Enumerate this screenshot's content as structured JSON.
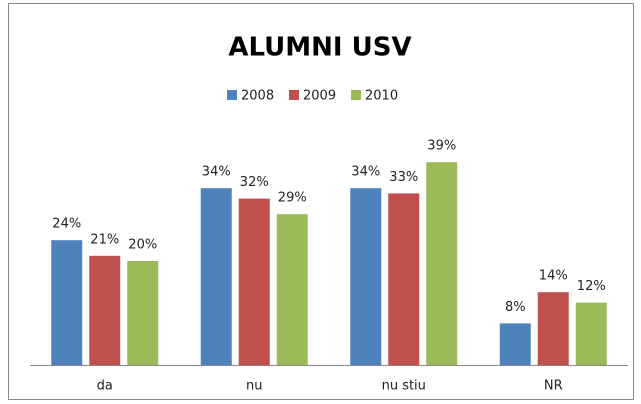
{
  "chart_data": {
    "type": "bar",
    "title": "ALUMNI USV",
    "categories": [
      "da",
      "nu",
      "nu stiu",
      "NR"
    ],
    "series": [
      {
        "name": "2008",
        "color": "#4f81bd",
        "values": [
          24,
          34,
          34,
          8
        ],
        "value_labels": [
          "24%",
          "34%",
          "34%",
          "8%"
        ]
      },
      {
        "name": "2009",
        "color": "#c0504d",
        "values": [
          21,
          32,
          33,
          14
        ],
        "value_labels": [
          "21%",
          "32%",
          "33%",
          "14%"
        ]
      },
      {
        "name": "2010",
        "color": "#9bbb59",
        "values": [
          20,
          29,
          39,
          12
        ],
        "value_labels": [
          "20%",
          "29%",
          "39%",
          "12%"
        ]
      }
    ]
  }
}
